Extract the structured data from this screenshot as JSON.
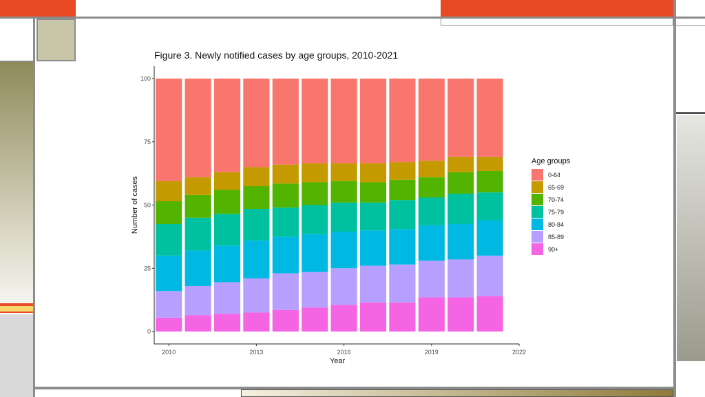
{
  "chart_data": {
    "type": "bar",
    "stacked": true,
    "title": "Figure 3. Newly notified cases by age groups, 2010-2021",
    "xlabel": "Year",
    "ylabel": "Number of cases",
    "xlim": [
      2009.5,
      2022
    ],
    "ylim": [
      0,
      100
    ],
    "xticks": [
      2010,
      2013,
      2016,
      2019,
      2022
    ],
    "yticks": [
      0,
      25,
      50,
      75,
      100
    ],
    "grid": false,
    "legend_title": "Age groups",
    "legend_position": "right",
    "categories": [
      2010,
      2011,
      2012,
      2013,
      2014,
      2015,
      2016,
      2017,
      2018,
      2019,
      2020,
      2021
    ],
    "series": [
      {
        "name": "90+",
        "color": "#F564E3",
        "values": [
          5.5,
          6.5,
          7,
          7.5,
          8.5,
          9.5,
          10.5,
          11.5,
          11.5,
          13.5,
          13.5,
          14
        ]
      },
      {
        "name": "85-89",
        "color": "#B79FFF",
        "values": [
          10.5,
          11.5,
          12.5,
          13.5,
          14.5,
          14,
          14.5,
          14.5,
          15,
          14.5,
          15,
          16
        ]
      },
      {
        "name": "80-84",
        "color": "#00B9E3",
        "values": [
          14,
          14,
          14.5,
          15,
          14.5,
          15,
          14.5,
          14,
          14,
          14,
          14,
          14
        ]
      },
      {
        "name": "75-79",
        "color": "#00C19F",
        "values": [
          12.5,
          13,
          12.5,
          12.5,
          11.5,
          11.5,
          11.5,
          11,
          11.5,
          11,
          12,
          11
        ]
      },
      {
        "name": "70-74",
        "color": "#53B400",
        "values": [
          9,
          9,
          9.5,
          9,
          9.5,
          9,
          8.5,
          8,
          8,
          8,
          8.5,
          8.5
        ]
      },
      {
        "name": "65-69",
        "color": "#C49A00",
        "values": [
          8,
          7,
          7,
          7.5,
          7.5,
          7.5,
          7,
          7.5,
          7,
          6.5,
          6,
          5.5
        ]
      },
      {
        "name": "0-64",
        "color": "#F8766D",
        "values": [
          40.5,
          39,
          37,
          35,
          34,
          33.5,
          33.5,
          33.5,
          33,
          32.5,
          31,
          31
        ]
      }
    ]
  },
  "legend_order": [
    "0-64",
    "65-69",
    "70-74",
    "75-79",
    "80-84",
    "85-89",
    "90+"
  ],
  "colors": {
    "accent_orange": "#E84A23",
    "frame_gray": "#8C8C8C",
    "olive": "#8F8A5A",
    "khaki": "#C8C5A8",
    "yellow": "#F5D76E"
  }
}
